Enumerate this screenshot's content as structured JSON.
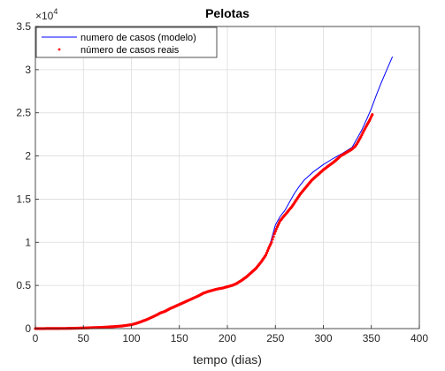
{
  "chart_data": {
    "type": "line",
    "title": "Pelotas",
    "xlabel": "tempo (dias)",
    "ylabel": "",
    "xlim": [
      0,
      400
    ],
    "ylim": [
      0,
      35000
    ],
    "x_ticks": [
      0,
      50,
      100,
      150,
      200,
      250,
      300,
      350,
      400
    ],
    "y_ticks": [
      0,
      5000,
      10000,
      15000,
      20000,
      25000,
      30000,
      35000
    ],
    "x_tick_labels": [
      "0",
      "50",
      "100",
      "150",
      "200",
      "250",
      "300",
      "350",
      "400"
    ],
    "y_tick_labels": [
      "0",
      "0.5",
      "1",
      "1.5",
      "2",
      "2.5",
      "3",
      "3.5"
    ],
    "y_multiplier": {
      "base": "×10",
      "exponent": "4"
    },
    "grid": true,
    "legend_position": "top-left",
    "series": [
      {
        "name": "numero de casos (modelo)",
        "style": "line",
        "color": "#0000ff",
        "x": [
          0,
          25,
          50,
          75,
          90,
          100,
          110,
          120,
          130,
          140,
          150,
          160,
          170,
          180,
          190,
          200,
          210,
          220,
          230,
          240,
          245,
          250,
          255,
          260,
          265,
          270,
          275,
          280,
          285,
          290,
          300,
          310,
          320,
          330,
          335,
          340,
          345,
          350,
          355,
          360,
          365,
          372
        ],
        "y": [
          0,
          20,
          80,
          150,
          300,
          500,
          800,
          1300,
          1800,
          2300,
          2800,
          3300,
          3800,
          4300,
          4600,
          4900,
          5300,
          6000,
          7000,
          8500,
          10000,
          12000,
          13000,
          13700,
          14700,
          15700,
          16500,
          17200,
          17700,
          18200,
          19000,
          19700,
          20300,
          21000,
          22000,
          23000,
          24200,
          25500,
          27000,
          28400,
          29700,
          31500
        ]
      },
      {
        "name": "número de casos reais",
        "style": "points",
        "color": "#ff0000",
        "x": [
          0,
          10,
          20,
          30,
          40,
          50,
          60,
          70,
          80,
          90,
          100,
          105,
          110,
          115,
          120,
          125,
          130,
          135,
          140,
          145,
          150,
          155,
          160,
          165,
          170,
          175,
          180,
          185,
          190,
          195,
          200,
          205,
          210,
          215,
          220,
          225,
          230,
          235,
          240,
          243,
          246,
          249,
          252,
          255,
          258,
          261,
          264,
          267,
          270,
          273,
          276,
          279,
          282,
          285,
          288,
          291,
          294,
          297,
          300,
          303,
          306,
          309,
          312,
          315,
          318,
          321,
          324,
          327,
          330,
          333,
          336,
          339,
          342,
          345,
          348,
          351
        ],
        "y": [
          0,
          5,
          10,
          20,
          40,
          70,
          110,
          150,
          220,
          300,
          450,
          600,
          800,
          1000,
          1250,
          1500,
          1800,
          2000,
          2300,
          2550,
          2800,
          3050,
          3300,
          3550,
          3800,
          4100,
          4300,
          4450,
          4600,
          4700,
          4850,
          5000,
          5250,
          5600,
          6000,
          6500,
          7000,
          7700,
          8500,
          9300,
          10000,
          11000,
          11800,
          12500,
          12900,
          13300,
          13700,
          14100,
          14600,
          15100,
          15600,
          16000,
          16400,
          16800,
          17200,
          17500,
          17800,
          18100,
          18400,
          18650,
          18900,
          19150,
          19400,
          19700,
          20000,
          20200,
          20400,
          20600,
          20800,
          21100,
          21600,
          22200,
          22900,
          23500,
          24100,
          24800
        ]
      }
    ]
  }
}
